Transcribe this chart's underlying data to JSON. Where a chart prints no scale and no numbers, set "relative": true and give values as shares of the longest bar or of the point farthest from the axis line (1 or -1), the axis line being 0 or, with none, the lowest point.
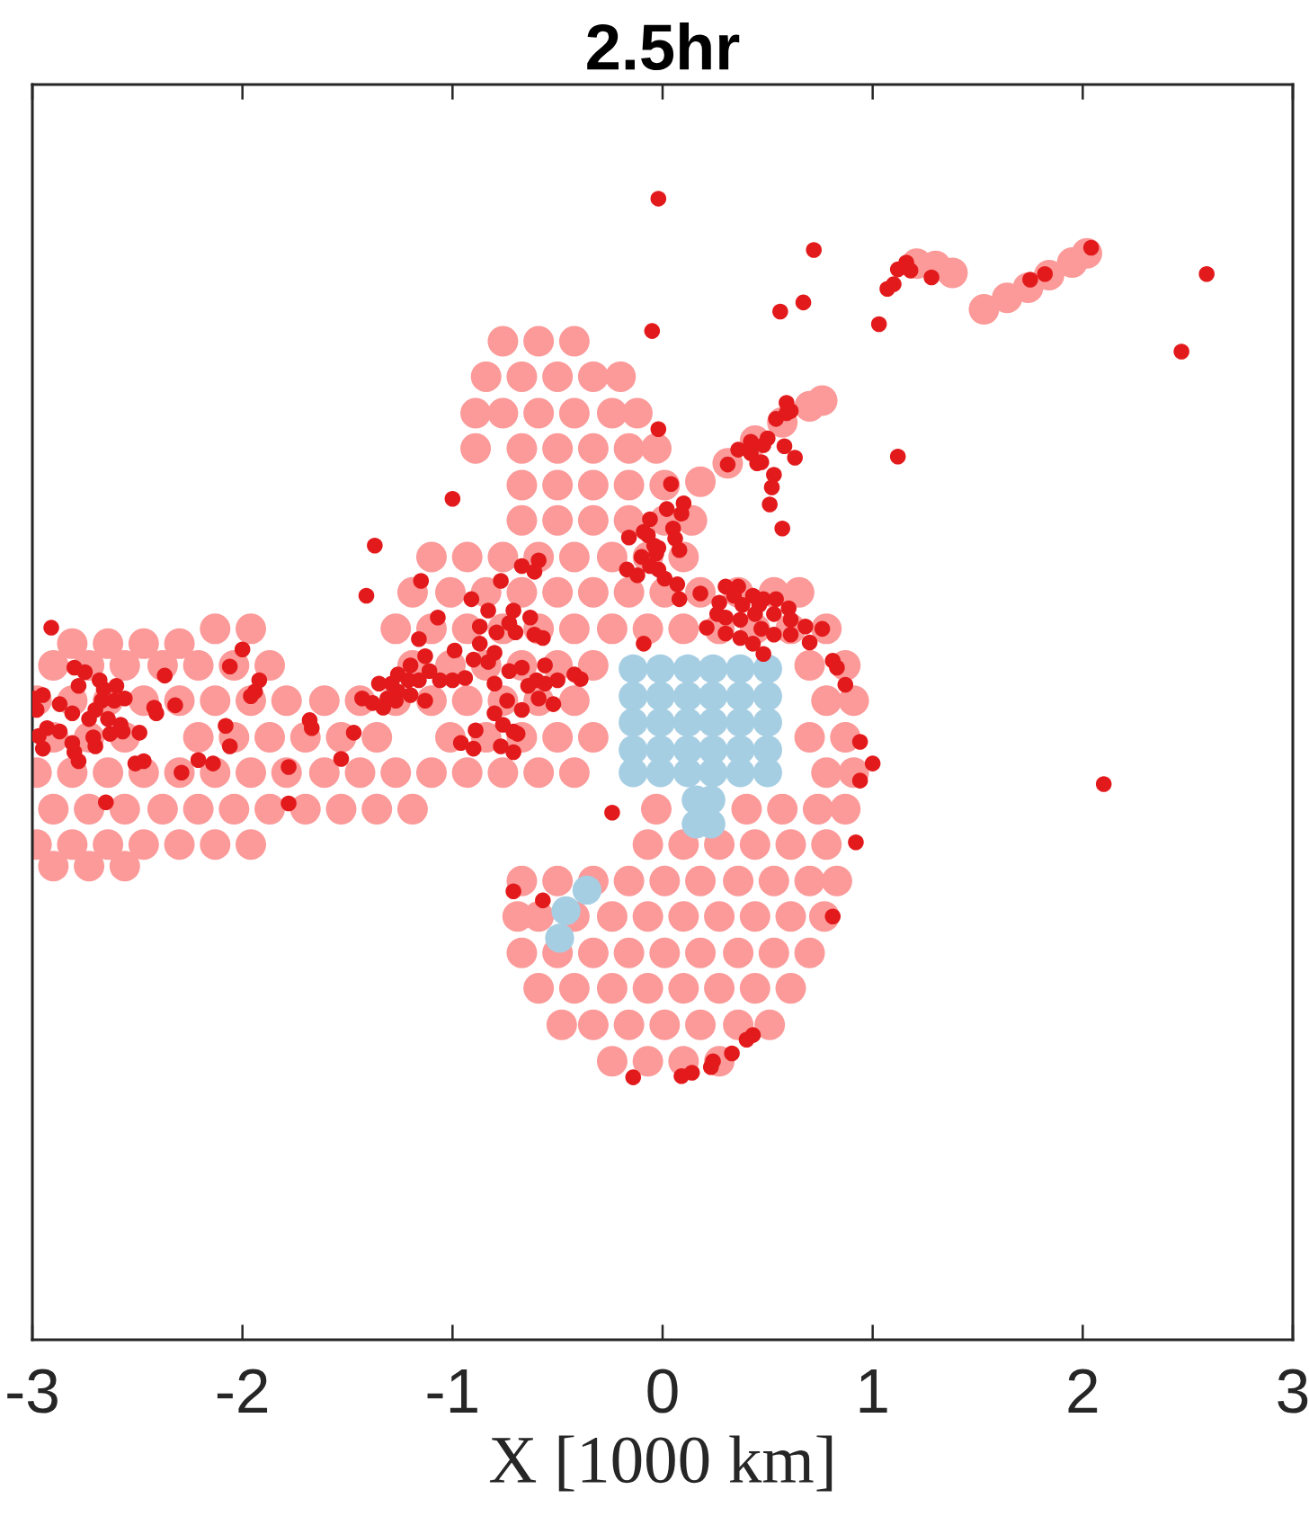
{
  "chart_data": {
    "type": "scatter",
    "title": "2.5hr",
    "xlabel": "X [1000 km]",
    "xlim": [
      -3,
      3
    ],
    "xticks": [
      -3,
      -2,
      -1,
      0,
      1,
      2,
      3
    ],
    "relative": true,
    "marker": "circle",
    "series": [
      {
        "color": "#fb9a99",
        "x": [
          -0.76,
          -0.59,
          -0.42,
          -0.84,
          -0.67,
          -0.5,
          -0.33,
          -0.2,
          -0.89,
          -0.76,
          -0.59,
          -0.42,
          -0.24,
          -0.12,
          -0.89,
          -0.67,
          -0.5,
          -0.33,
          -0.16,
          -0.03,
          -0.67,
          -0.5,
          -0.33,
          -0.16,
          0.01,
          -0.67,
          -0.5,
          -0.33,
          -0.16,
          0.01,
          0.14,
          -1.1,
          -0.93,
          -0.76,
          -0.59,
          -0.42,
          -0.24,
          -0.07,
          0.1,
          -1.19,
          -1.01,
          -0.84,
          -0.67,
          -0.5,
          -0.33,
          -0.16,
          0.01,
          0.18,
          0.36,
          0.53,
          0.65,
          -2.13,
          -1.96,
          -1.27,
          -1.1,
          -0.93,
          -0.76,
          -0.59,
          -0.42,
          -0.24,
          -0.07,
          0.1,
          0.27,
          0.44,
          0.61,
          0.78,
          -2.81,
          -2.64,
          -2.47,
          -2.3,
          -2.9,
          -2.73,
          -2.56,
          -2.38,
          -2.21,
          -2.04,
          -1.87,
          -1.19,
          -1.01,
          -0.84,
          -0.67,
          -0.5,
          -0.33,
          0.7,
          0.87,
          -2.98,
          -2.81,
          -2.64,
          -2.47,
          -2.3,
          -2.13,
          -1.96,
          -1.79,
          -1.61,
          -1.44,
          -1.27,
          -1.1,
          -0.93,
          -0.76,
          -0.59,
          -0.42,
          0.78,
          0.91,
          -2.9,
          -2.73,
          -2.56,
          -2.21,
          -2.04,
          -1.87,
          -1.7,
          -1.53,
          -1.36,
          -1.01,
          -0.84,
          -0.67,
          -0.5,
          -0.33,
          0.7,
          0.87,
          -2.98,
          -2.81,
          -2.64,
          -2.47,
          -2.3,
          -2.13,
          -1.96,
          -1.79,
          -1.61,
          -1.44,
          -1.27,
          -1.1,
          -0.93,
          -0.76,
          -0.59,
          -0.42,
          0.78,
          0.91,
          -2.9,
          -2.73,
          -2.56,
          -2.38,
          -2.21,
          -2.04,
          -1.87,
          -1.7,
          -1.53,
          -1.36,
          -1.19,
          -0.03,
          0.4,
          0.57,
          0.74,
          0.87,
          -2.98,
          -2.81,
          -2.64,
          -2.47,
          -2.3,
          -2.13,
          -1.96,
          -0.07,
          0.1,
          0.27,
          0.44,
          0.61,
          0.78,
          -2.9,
          -2.73,
          -2.56,
          -0.67,
          -0.5,
          -0.33,
          -0.16,
          0.01,
          0.18,
          0.36,
          0.53,
          0.7,
          0.83,
          -0.69,
          -0.59,
          -0.42,
          -0.24,
          -0.07,
          0.1,
          0.27,
          0.44,
          0.61,
          0.77,
          -0.67,
          -0.5,
          -0.33,
          -0.16,
          0.01,
          0.18,
          0.36,
          0.53,
          0.7,
          -0.59,
          -0.42,
          -0.24,
          -0.07,
          0.1,
          0.27,
          0.44,
          0.61,
          -0.48,
          -0.33,
          -0.16,
          0.01,
          0.18,
          0.36,
          0.51,
          -0.24,
          -0.07,
          0.1,
          0.27,
          0.18,
          0.31,
          0.44,
          0.57,
          0.7,
          0.76,
          1.21,
          1.3,
          1.38,
          1.53,
          1.64,
          1.74,
          1.84,
          1.95,
          2.02
        ],
        "values": [
          0.875,
          0.875,
          0.875,
          0.844,
          0.844,
          0.844,
          0.844,
          0.844,
          0.812,
          0.812,
          0.812,
          0.812,
          0.812,
          0.812,
          0.781,
          0.781,
          0.781,
          0.781,
          0.781,
          0.781,
          0.749,
          0.749,
          0.749,
          0.749,
          0.749,
          0.718,
          0.718,
          0.718,
          0.718,
          0.718,
          0.718,
          0.686,
          0.686,
          0.686,
          0.686,
          0.686,
          0.686,
          0.686,
          0.686,
          0.655,
          0.655,
          0.655,
          0.655,
          0.655,
          0.655,
          0.655,
          0.655,
          0.655,
          0.655,
          0.655,
          0.655,
          0.623,
          0.623,
          0.623,
          0.623,
          0.623,
          0.623,
          0.623,
          0.623,
          0.623,
          0.623,
          0.623,
          0.623,
          0.623,
          0.623,
          0.623,
          0.61,
          0.61,
          0.61,
          0.61,
          0.591,
          0.591,
          0.591,
          0.591,
          0.591,
          0.591,
          0.591,
          0.591,
          0.591,
          0.591,
          0.591,
          0.591,
          0.591,
          0.591,
          0.591,
          0.56,
          0.56,
          0.56,
          0.56,
          0.56,
          0.56,
          0.56,
          0.56,
          0.56,
          0.56,
          0.56,
          0.56,
          0.56,
          0.56,
          0.56,
          0.56,
          0.56,
          0.56,
          0.528,
          0.528,
          0.528,
          0.528,
          0.528,
          0.528,
          0.528,
          0.528,
          0.528,
          0.528,
          0.528,
          0.528,
          0.528,
          0.528,
          0.528,
          0.528,
          0.497,
          0.497,
          0.497,
          0.497,
          0.497,
          0.497,
          0.497,
          0.497,
          0.497,
          0.497,
          0.497,
          0.497,
          0.497,
          0.497,
          0.497,
          0.497,
          0.497,
          0.497,
          0.465,
          0.465,
          0.465,
          0.465,
          0.465,
          0.465,
          0.465,
          0.465,
          0.465,
          0.465,
          0.465,
          0.465,
          0.465,
          0.465,
          0.465,
          0.465,
          0.434,
          0.434,
          0.434,
          0.434,
          0.434,
          0.434,
          0.434,
          0.434,
          0.434,
          0.434,
          0.434,
          0.434,
          0.434,
          0.415,
          0.415,
          0.415,
          0.402,
          0.402,
          0.402,
          0.402,
          0.402,
          0.402,
          0.402,
          0.402,
          0.402,
          0.402,
          0.371,
          0.371,
          0.371,
          0.371,
          0.371,
          0.371,
          0.371,
          0.371,
          0.371,
          0.371,
          0.339,
          0.339,
          0.339,
          0.339,
          0.339,
          0.339,
          0.339,
          0.339,
          0.339,
          0.308,
          0.308,
          0.308,
          0.308,
          0.308,
          0.308,
          0.308,
          0.308,
          0.276,
          0.276,
          0.276,
          0.276,
          0.276,
          0.276,
          0.276,
          0.244,
          0.244,
          0.244,
          0.244,
          0.752,
          0.768,
          0.788,
          0.804,
          0.818,
          0.823,
          0.943,
          0.941,
          0.935,
          0.903,
          0.913,
          0.922,
          0.933,
          0.944,
          0.952
        ]
      },
      {
        "color": "#a6cee3",
        "x": [
          -0.14,
          -0.01,
          0.12,
          0.24,
          0.37,
          0.5,
          -0.14,
          -0.01,
          0.12,
          0.24,
          0.37,
          0.5,
          -0.14,
          -0.01,
          0.12,
          0.24,
          0.37,
          0.5,
          -0.14,
          -0.01,
          0.12,
          0.24,
          0.37,
          0.5,
          -0.14,
          -0.01,
          0.12,
          0.24,
          0.37,
          0.5,
          0.16,
          0.23,
          0.16,
          0.23,
          -0.36,
          -0.46,
          -0.49
        ],
        "values": [
          0.588,
          0.588,
          0.588,
          0.588,
          0.588,
          0.588,
          0.564,
          0.564,
          0.564,
          0.564,
          0.564,
          0.564,
          0.541,
          0.541,
          0.541,
          0.541,
          0.541,
          0.541,
          0.517,
          0.517,
          0.517,
          0.517,
          0.517,
          0.517,
          0.497,
          0.497,
          0.497,
          0.497,
          0.497,
          0.497,
          0.473,
          0.473,
          0.452,
          0.452,
          0.394,
          0.376,
          0.352
        ]
      },
      {
        "color": "#e31a1c",
        "x": [
          -0.02,
          0.72,
          0.56,
          0.67,
          1.03,
          1.07,
          1.1,
          1.12,
          1.16,
          1.18,
          1.28,
          1.75,
          1.82,
          2.04,
          2.59,
          2.47,
          -0.05,
          1.12,
          0.59,
          0.59,
          0.54,
          0.61,
          0.42,
          0.48,
          0.42,
          0.47,
          0.45,
          0.5,
          0.36,
          0.31,
          0.58,
          0.63,
          0.53,
          0.52,
          0.51,
          0.57,
          -0.02,
          0.04,
          0.02,
          0.09,
          0.1,
          0.05,
          -1.0,
          -0.06,
          -0.09,
          -0.07,
          -0.16,
          -1.37,
          -1.41,
          -2.91,
          -2.0,
          -2.06,
          -1.92,
          -1.94,
          -1.96,
          -2.37,
          -2.32,
          -2.42,
          -2.41,
          -2.8,
          -2.75,
          -2.78,
          -2.68,
          -2.66,
          -2.6,
          -2.56,
          -2.61,
          -2.67,
          -2.7,
          -2.73,
          -2.64,
          -2.58,
          -2.57,
          -2.63,
          -2.81,
          -2.87,
          -2.95,
          -2.99,
          -2.98,
          -2.93,
          -2.87,
          -2.97,
          -2.95,
          -2.81,
          -2.8,
          -2.78,
          -2.71,
          -2.7,
          -2.49,
          -2.51,
          -2.47,
          -2.29,
          -2.21,
          -2.14,
          -2.08,
          -2.06,
          -2.65,
          -1.78,
          -1.78,
          -1.68,
          -1.67,
          -1.53,
          -1.47,
          -1.15,
          -1.07,
          -1.16,
          -0.99,
          -1.43,
          -1.38,
          -1.35,
          -1.31,
          -1.29,
          -1.26,
          -1.26,
          -1.21,
          -1.2,
          -1.16,
          -1.13,
          -1.2,
          -1.13,
          -1.11,
          -1.06,
          -1.0,
          -0.94,
          -1.33,
          -1.27,
          -0.91,
          -0.83,
          -0.87,
          -0.79,
          -0.71,
          -0.73,
          -0.7,
          -0.63,
          -0.61,
          -0.57,
          -0.87,
          -0.9,
          -0.83,
          -0.8,
          -0.8,
          -0.73,
          -0.67,
          -0.64,
          -0.6,
          -0.56,
          -0.56,
          -0.59,
          -0.52,
          -0.5,
          -0.74,
          -0.67,
          -0.8,
          -0.76,
          -0.71,
          -0.69,
          -0.77,
          -0.71,
          -0.89,
          -0.96,
          -0.9,
          -0.42,
          -0.39,
          -0.67,
          -0.61,
          -0.59,
          -0.77,
          -0.09,
          -0.24,
          -0.71,
          -0.57,
          -0.04,
          -0.1,
          -0.06,
          -0.12,
          -0.17,
          -0.02,
          0.06,
          -0.02,
          0.08,
          -0.03,
          0.01,
          0.07,
          0.18,
          0.08,
          0.3,
          0.36,
          0.34,
          0.43,
          0.48,
          0.54,
          0.6,
          0.27,
          0.38,
          0.46,
          0.26,
          0.3,
          0.37,
          0.44,
          0.53,
          0.61,
          0.68,
          0.76,
          0.21,
          0.3,
          0.37,
          0.43,
          0.47,
          0.53,
          0.61,
          0.7,
          0.48,
          0.81,
          0.83,
          0.87,
          0.94,
          1.0,
          0.94,
          0.92,
          0.81,
          2.1,
          -0.14,
          0.09,
          0.14,
          0.23,
          0.24,
          0.33,
          0.4,
          0.43
        ],
        "values": [
          1.0,
          0.955,
          0.901,
          0.909,
          0.89,
          0.921,
          0.925,
          0.938,
          0.944,
          0.937,
          0.931,
          0.929,
          0.934,
          0.957,
          0.934,
          0.866,
          0.884,
          0.774,
          0.821,
          0.812,
          0.807,
          0.814,
          0.787,
          0.784,
          0.777,
          0.769,
          0.768,
          0.79,
          0.78,
          0.767,
          0.783,
          0.773,
          0.758,
          0.747,
          0.732,
          0.711,
          0.798,
          0.75,
          0.728,
          0.724,
          0.733,
          0.711,
          0.737,
          0.719,
          0.708,
          0.705,
          0.703,
          0.696,
          0.652,
          0.624,
          0.605,
          0.59,
          0.578,
          0.568,
          0.564,
          0.582,
          0.556,
          0.554,
          0.549,
          0.589,
          0.585,
          0.573,
          0.578,
          0.57,
          0.573,
          0.562,
          0.56,
          0.56,
          0.552,
          0.544,
          0.544,
          0.539,
          0.533,
          0.531,
          0.549,
          0.557,
          0.565,
          0.562,
          0.552,
          0.536,
          0.533,
          0.529,
          0.518,
          0.523,
          0.515,
          0.507,
          0.528,
          0.52,
          0.532,
          0.505,
          0.507,
          0.497,
          0.508,
          0.505,
          0.538,
          0.52,
          0.471,
          0.502,
          0.47,
          0.543,
          0.536,
          0.509,
          0.532,
          0.665,
          0.633,
          0.614,
          0.604,
          0.562,
          0.558,
          0.575,
          0.562,
          0.575,
          0.583,
          0.568,
          0.578,
          0.565,
          0.578,
          0.56,
          0.591,
          0.599,
          0.586,
          0.578,
          0.578,
          0.58,
          0.554,
          0.56,
          0.649,
          0.639,
          0.625,
          0.62,
          0.639,
          0.628,
          0.62,
          0.633,
          0.618,
          0.615,
          0.61,
          0.596,
          0.594,
          0.602,
          0.575,
          0.586,
          0.589,
          0.573,
          0.578,
          0.591,
          0.575,
          0.562,
          0.557,
          0.578,
          0.56,
          0.552,
          0.549,
          0.539,
          0.533,
          0.531,
          0.52,
          0.515,
          0.534,
          0.523,
          0.518,
          0.583,
          0.579,
          0.678,
          0.673,
          0.683,
          0.665,
          0.61,
          0.462,
          0.393,
          0.385,
          0.696,
          0.686,
          0.678,
          0.67,
          0.675,
          0.675,
          0.702,
          0.694,
          0.692,
          0.689,
          0.667,
          0.662,
          0.654,
          0.649,
          0.66,
          0.66,
          0.652,
          0.652,
          0.649,
          0.649,
          0.641,
          0.646,
          0.644,
          0.644,
          0.636,
          0.633,
          0.631,
          0.636,
          0.636,
          0.631,
          0.625,
          0.623,
          0.624,
          0.619,
          0.615,
          0.61,
          0.623,
          0.618,
          0.618,
          0.611,
          0.601,
          0.595,
          0.589,
          0.574,
          0.524,
          0.505,
          0.49,
          0.436,
          0.371,
          0.487,
          0.23,
          0.231,
          0.234,
          0.239,
          0.244,
          0.251,
          0.263,
          0.267
        ]
      }
    ]
  }
}
